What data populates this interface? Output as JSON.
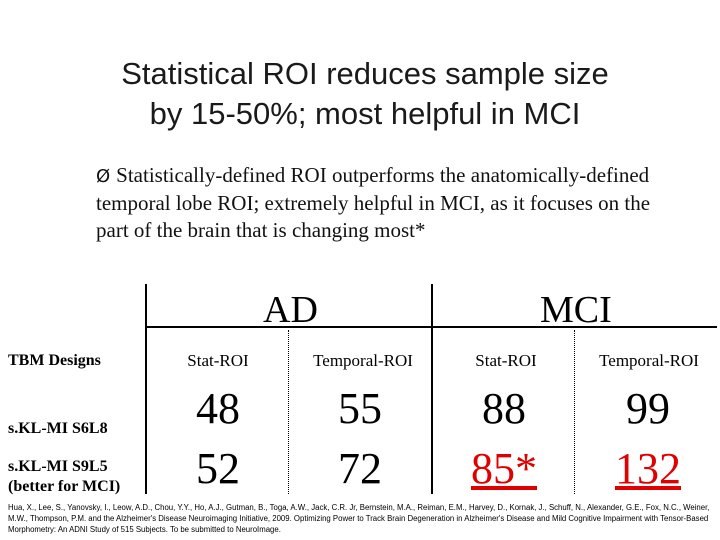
{
  "title_line1": "Statistical ROI reduces sample size",
  "title_line2": "by 15-50%; most helpful in MCI",
  "bullet_arrow": "Ø",
  "bullet_text": "Statistically-defined ROI outperforms the anatomically-defined temporal lobe ROI; extremely helpful in MCI, as it focuses on the part of the brain that is changing most*",
  "table": {
    "group_ad": "AD",
    "group_mci": "MCI",
    "row_header": "TBM Designs",
    "columns": [
      "Stat-ROI",
      "Temporal-ROI",
      "Stat-ROI",
      "Temporal-ROI"
    ],
    "row1_label": "s.KL-MI S6L8",
    "row1_values": [
      "48",
      "55",
      "88",
      "99"
    ],
    "row2_label_a": "s.KL-MI S9L5",
    "row2_label_b": "(better for MCI)",
    "row2_values": [
      "52",
      "72",
      "85*",
      "132"
    ]
  },
  "colors": {
    "highlight": "#e00000"
  },
  "reference": "Hua, X., Lee, S., Yanovsky, I., Leow, A.D., Chou, Y.Y., Ho, A.J., Gutman, B., Toga, A.W., Jack, C.R. Jr, Bernstein, M.A., Reiman, E.M., Harvey, D., Kornak, J., Schuff, N., Alexander, G.E., Fox, N.C., Weiner, M.W., Thompson, P.M. and the Alzheimer's Disease Neuroimaging Initiative, 2009. Optimizing Power to Track Brain Degeneration in Alzheimer's Disease and Mild Cognitive Impairment with Tensor-Based Morphometry: An ADNI Study of 515 Subjects. To be submitted to NeuroImage."
}
